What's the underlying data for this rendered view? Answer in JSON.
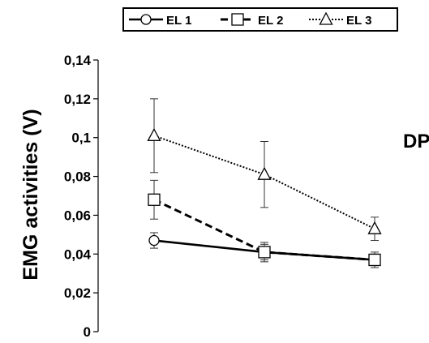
{
  "chart_data": {
    "type": "line",
    "title": "",
    "xlabel": "",
    "ylabel": "EMG activities (V)",
    "annotation": "DP",
    "ylim": [
      0,
      0.14
    ],
    "yticks": [
      "0",
      "0,02",
      "0,04",
      "0,06",
      "0,08",
      "0,1",
      "0,12",
      "0,14"
    ],
    "x": [
      1,
      2,
      3
    ],
    "grid": false,
    "legend_position": "top",
    "series": [
      {
        "name": "EL 1",
        "values": [
          0.047,
          0.041,
          0.037
        ],
        "errors": [
          0.004,
          0.005,
          0.003
        ],
        "marker": "circle",
        "line_style": "solid",
        "color": "#000000"
      },
      {
        "name": "EL 2",
        "values": [
          0.068,
          0.041,
          0.037
        ],
        "errors": [
          0.01,
          0.004,
          0.004
        ],
        "marker": "square",
        "line_style": "dashed",
        "color": "#000000"
      },
      {
        "name": "EL 3",
        "values": [
          0.101,
          0.081,
          0.053
        ],
        "errors": [
          0.019,
          0.017,
          0.006
        ],
        "marker": "triangle",
        "line_style": "dotted",
        "color": "#000000"
      }
    ]
  }
}
